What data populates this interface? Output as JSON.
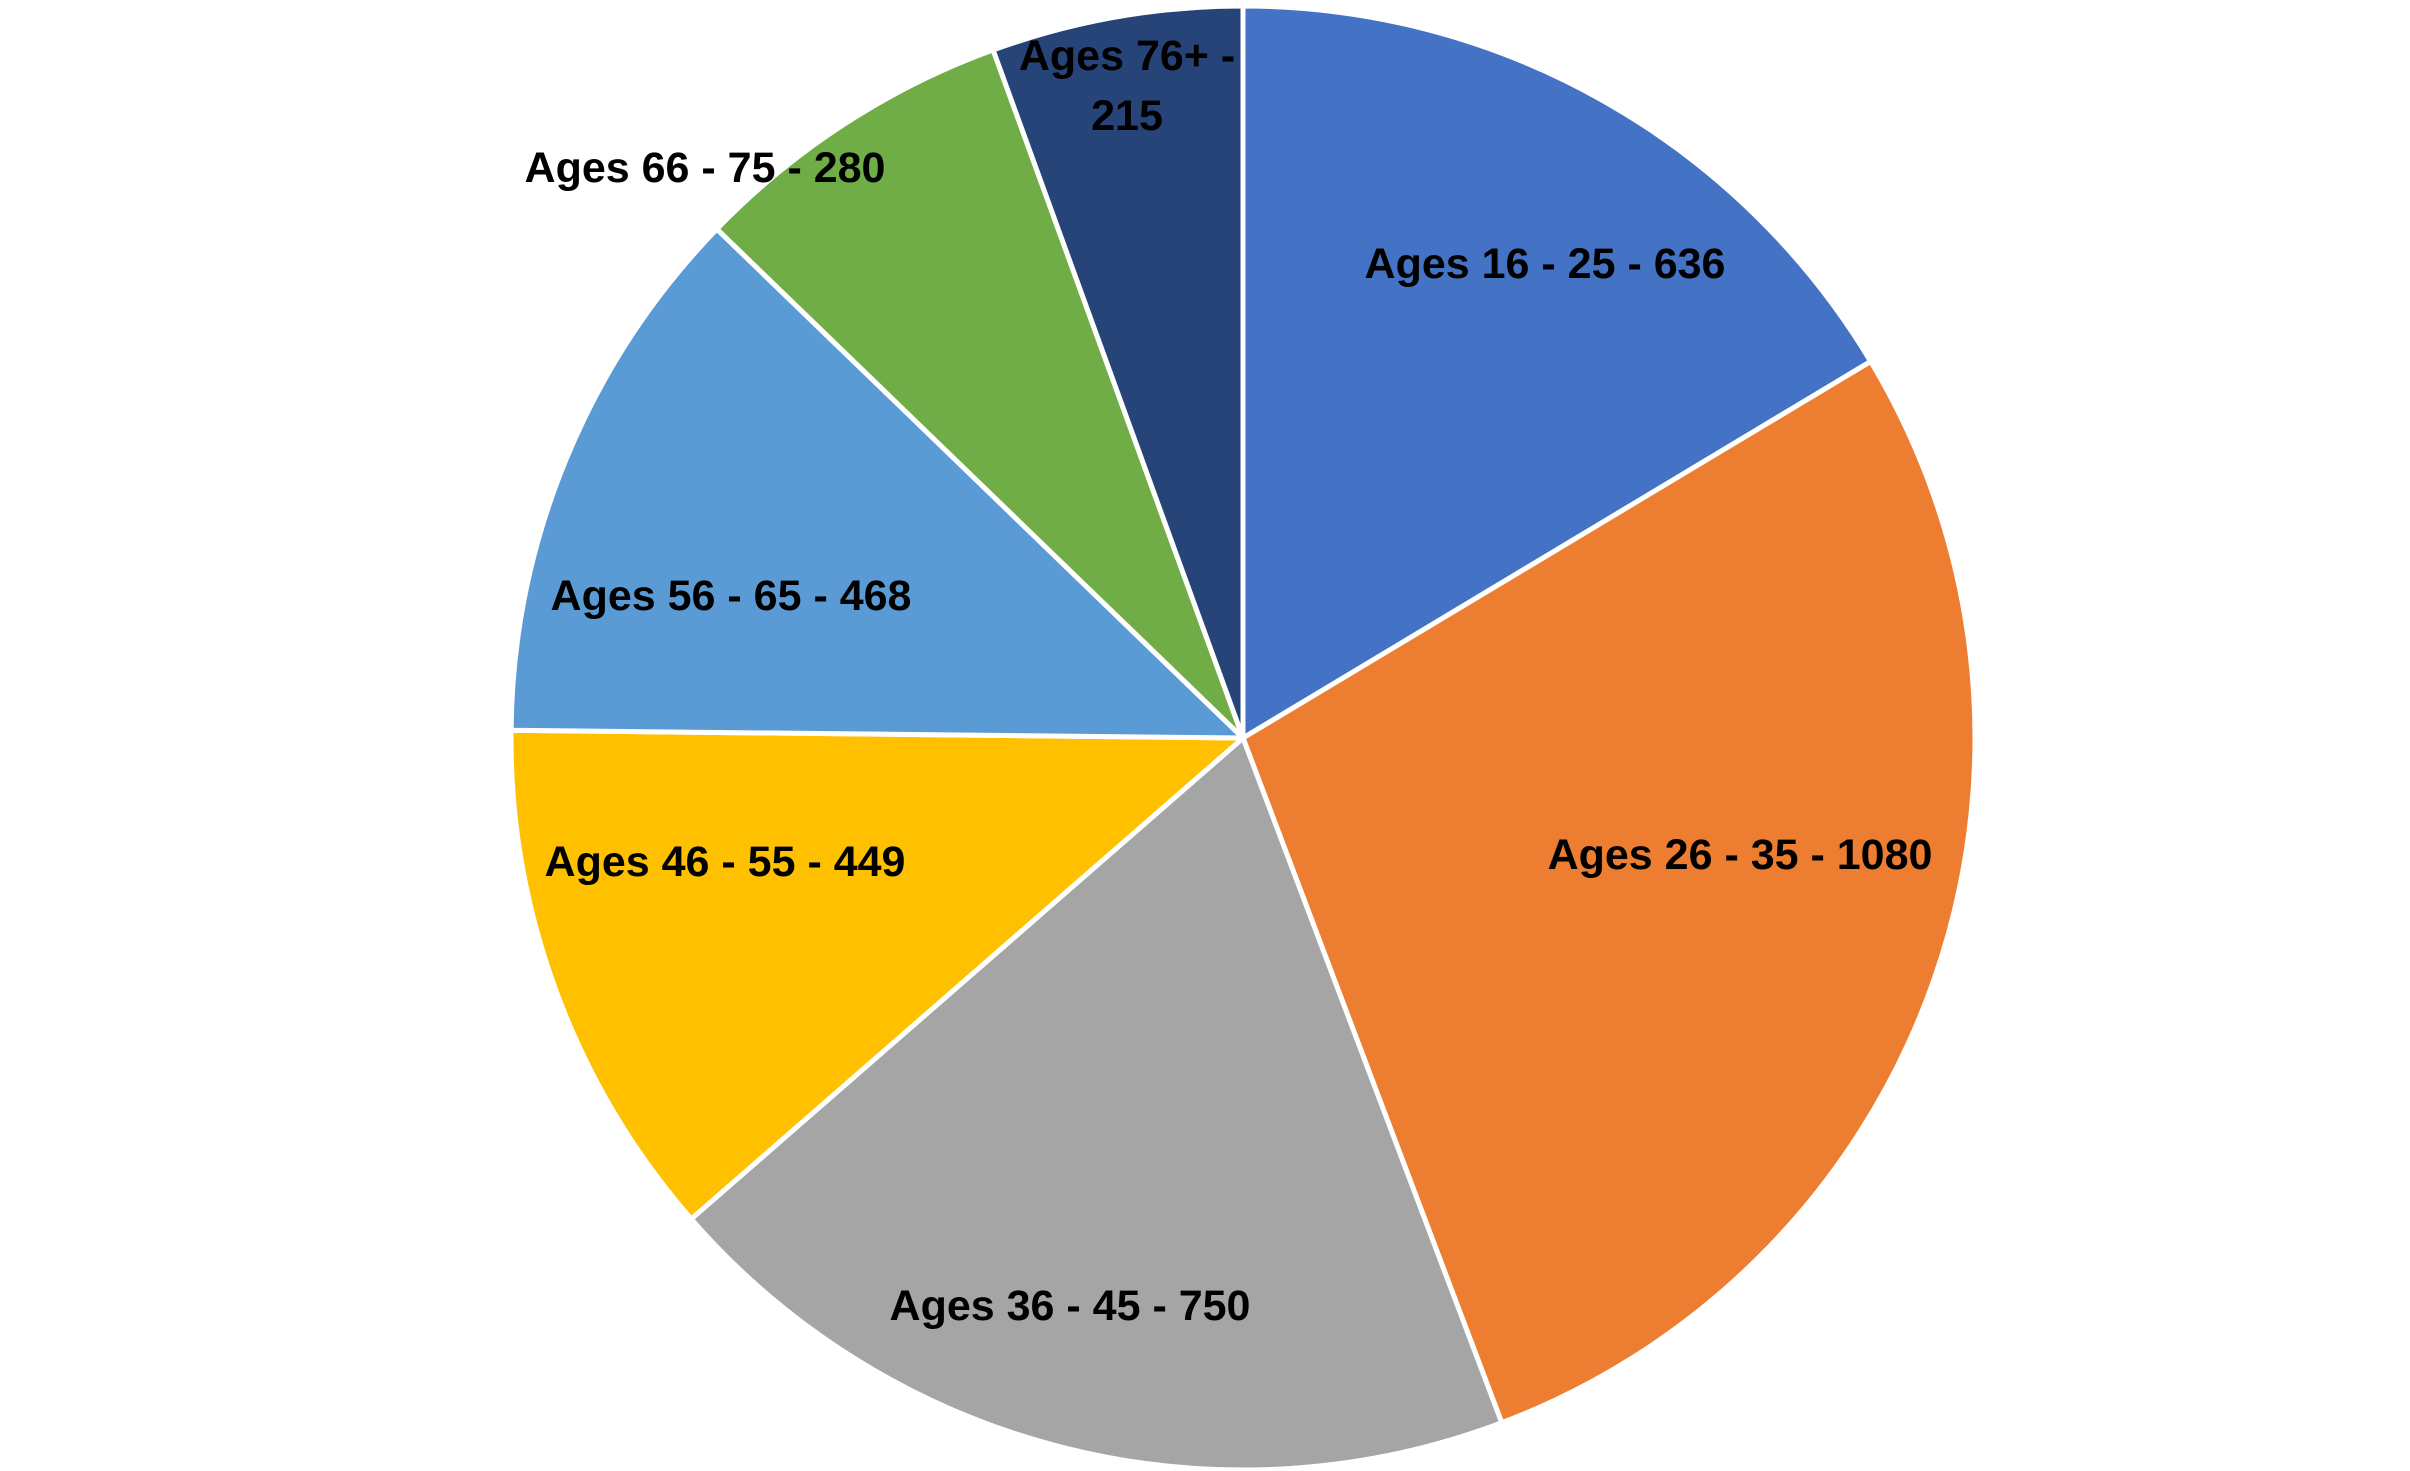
{
  "chart_data": {
    "type": "pie",
    "start_angle_deg": 0,
    "direction": "clockwise",
    "legend": "none",
    "slices": [
      {
        "name": "Ages 16 - 25",
        "value": 636,
        "label": "Ages 16 - 25 - 636",
        "label_lines": [
          "Ages 16 - 25 - 636"
        ],
        "color": "#4472C4"
      },
      {
        "name": "Ages 26 - 35",
        "value": 1080,
        "label": "Ages 26 - 35 - 1080",
        "label_lines": [
          "Ages 26 - 35 - 1080"
        ],
        "color": "#ED7D31"
      },
      {
        "name": "Ages 36 - 45",
        "value": 750,
        "label": "Ages 36 - 45 - 750",
        "label_lines": [
          "Ages 36 - 45 - 750"
        ],
        "color": "#A5A5A5"
      },
      {
        "name": "Ages 46 - 55",
        "value": 449,
        "label": "Ages 46 - 55 - 449",
        "label_lines": [
          "Ages 46 - 55 - 449"
        ],
        "color": "#FFC000"
      },
      {
        "name": "Ages 56 - 65",
        "value": 468,
        "label": "Ages 56 - 65 - 468",
        "label_lines": [
          "Ages 56 - 65 - 468"
        ],
        "color": "#5B9BD5"
      },
      {
        "name": "Ages 66 - 75",
        "value": 280,
        "label": "Ages 66 - 75 - 280",
        "label_lines": [
          "Ages 66 - 75 - 280"
        ],
        "color": "#70AD47"
      },
      {
        "name": "Ages 76+",
        "value": 215,
        "label": "Ages 76+ - 215",
        "label_lines": [
          "Ages 76+ -",
          "215"
        ],
        "color": "#264478"
      }
    ]
  }
}
